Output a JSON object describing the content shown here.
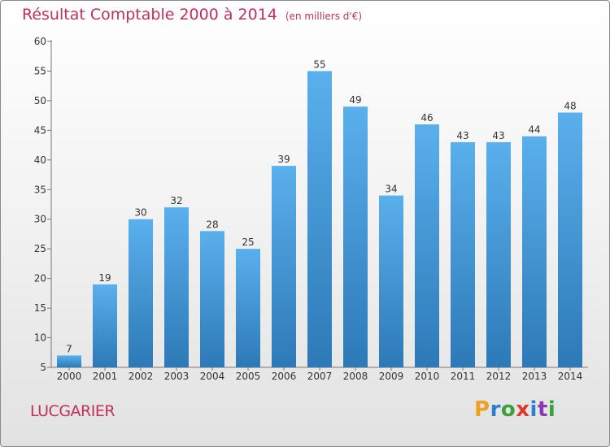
{
  "title": "Résultat Comptable 2000 à 2014",
  "subtitle": "(en milliers d'€)",
  "commune": "LUCGARIER",
  "logo": {
    "letters": [
      "P",
      "r",
      "o",
      "x",
      "i",
      "t",
      "i"
    ],
    "colors": [
      "#f0a020",
      "#2f7fd0",
      "#3aa03a",
      "#e03a2a",
      "#2f7fd0",
      "#8a3ab0",
      "#3aa03a"
    ]
  },
  "colors": {
    "bar_light": "#5ab0ec",
    "bar_dark": "#2d79b8",
    "title": "#c0305a"
  },
  "chart_data": {
    "type": "bar",
    "title": "Résultat Comptable 2000 à 2014",
    "xlabel": "",
    "ylabel": "",
    "categories": [
      "2000",
      "2001",
      "2002",
      "2003",
      "2004",
      "2005",
      "2006",
      "2007",
      "2008",
      "2009",
      "2010",
      "2011",
      "2012",
      "2013",
      "2014"
    ],
    "values": [
      7,
      19,
      30,
      32,
      28,
      25,
      39,
      55,
      49,
      34,
      46,
      43,
      43,
      44,
      48
    ],
    "ylim": [
      5,
      60
    ],
    "yticks": [
      5,
      10,
      15,
      20,
      25,
      30,
      35,
      40,
      45,
      50,
      55,
      60
    ],
    "grid": false
  }
}
